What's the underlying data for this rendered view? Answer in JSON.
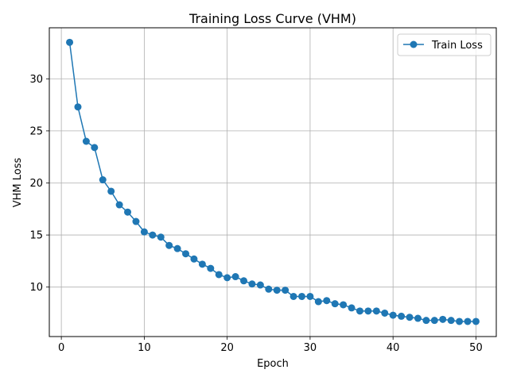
{
  "chart_data": {
    "type": "line",
    "title": "Training Loss Curve (VHM)",
    "xlabel": "Epoch",
    "ylabel": "VHM Loss",
    "xlim": [
      -1.45,
      52.45
    ],
    "ylim": [
      5.25,
      34.9
    ],
    "xticks": [
      0,
      10,
      20,
      30,
      40,
      50
    ],
    "yticks": [
      10,
      15,
      20,
      25,
      30
    ],
    "grid": true,
    "legend_position": "top-right",
    "x": [
      1,
      2,
      3,
      4,
      5,
      6,
      7,
      8,
      9,
      10,
      11,
      12,
      13,
      14,
      15,
      16,
      17,
      18,
      19,
      20,
      21,
      22,
      23,
      24,
      25,
      26,
      27,
      28,
      29,
      30,
      31,
      32,
      33,
      34,
      35,
      36,
      37,
      38,
      39,
      40,
      41,
      42,
      43,
      44,
      45,
      46,
      47,
      48,
      49,
      50
    ],
    "series": [
      {
        "name": "Train Loss",
        "color": "#1f77b4",
        "marker": "circle",
        "values": [
          33.5,
          27.3,
          24.0,
          23.4,
          20.3,
          19.2,
          17.9,
          17.2,
          16.3,
          15.3,
          15.0,
          14.8,
          14.0,
          13.7,
          13.2,
          12.7,
          12.2,
          11.8,
          11.2,
          10.9,
          11.0,
          10.6,
          10.3,
          10.2,
          9.8,
          9.7,
          9.7,
          9.1,
          9.1,
          9.1,
          8.6,
          8.7,
          8.4,
          8.3,
          8.0,
          7.7,
          7.7,
          7.7,
          7.5,
          7.3,
          7.2,
          7.1,
          7.0,
          6.8,
          6.8,
          6.9,
          6.8,
          6.7,
          6.7,
          6.7
        ]
      }
    ]
  }
}
